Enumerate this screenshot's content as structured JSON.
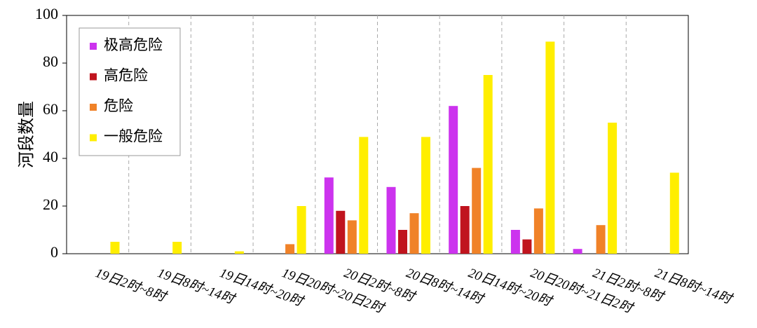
{
  "chart_data": {
    "type": "bar",
    "y_label": "河段数量",
    "categories": [
      "19日2时~8时",
      "19日8时~14时",
      "19日14时~20时",
      "19日20时~20日2时",
      "20日2时~8时",
      "20日8时~14时",
      "20日14时~20时",
      "20日20时~21日2时",
      "21日2时~8时",
      "21日8时~14时"
    ],
    "series": [
      {
        "name": "极高危险",
        "color": "#cc33ee",
        "values": [
          0,
          0,
          0,
          0,
          32,
          28,
          62,
          10,
          2,
          0
        ]
      },
      {
        "name": "高危险",
        "color": "#c0141e",
        "values": [
          0,
          0,
          0,
          0,
          18,
          10,
          20,
          6,
          0,
          0
        ]
      },
      {
        "name": "危险",
        "color": "#f08228",
        "values": [
          0,
          0,
          0,
          4,
          14,
          17,
          36,
          19,
          12,
          0
        ]
      },
      {
        "name": "一般危险",
        "color": "#ffee00",
        "values": [
          5,
          5,
          1,
          20,
          49,
          49,
          75,
          89,
          55,
          34
        ]
      }
    ],
    "ylim": [
      0,
      100
    ],
    "yticks": [
      0,
      20,
      40,
      60,
      80,
      100
    ],
    "legend": "upper left"
  }
}
